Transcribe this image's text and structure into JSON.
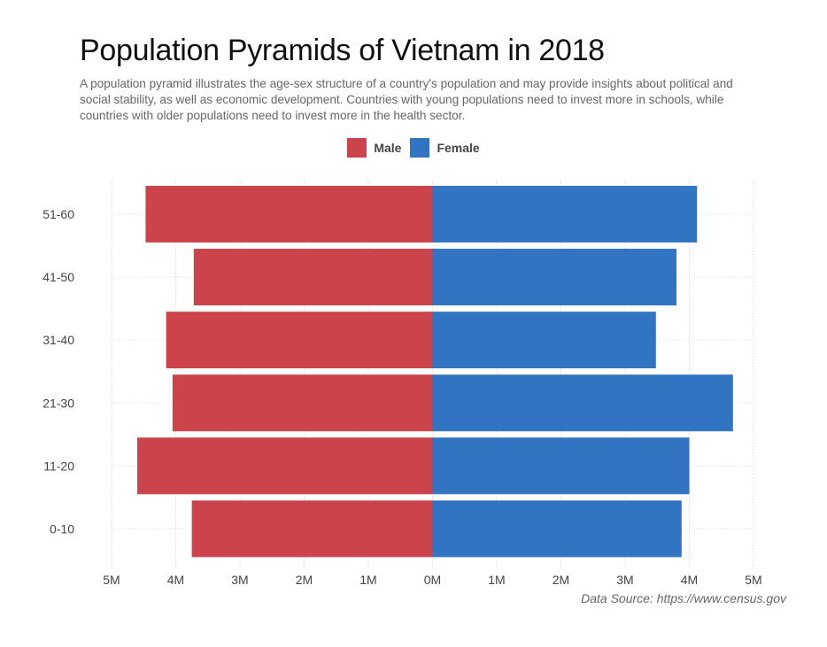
{
  "title": "Population Pyramids of Vietnam in 2018",
  "subtitle": "A population pyramid illustrates the age-sex structure of a country's population and may provide insights about political and social stability, as well as economic development. Countries with young populations need to invest more in schools, while countries with older populations need to invest more in the health sector.",
  "source": "Data Source: https://www.census.gov",
  "legend": [
    {
      "label": "Male",
      "color": "#cc444b"
    },
    {
      "label": "Female",
      "color": "#3174c2"
    }
  ],
  "chart_data": {
    "type": "bar",
    "orientation": "horizontal",
    "title": "Population Pyramids of Vietnam in 2018",
    "categories": [
      "0-10",
      "11-20",
      "21-30",
      "31-40",
      "41-50",
      "51-60"
    ],
    "series": [
      {
        "name": "Male",
        "color": "#cc444b",
        "values": [
          3.75,
          4.6,
          4.05,
          4.15,
          3.72,
          4.47
        ]
      },
      {
        "name": "Female",
        "color": "#3174c2",
        "values": [
          3.88,
          4.0,
          4.68,
          3.48,
          3.8,
          4.12
        ]
      }
    ],
    "xlim": [
      -5,
      5
    ],
    "xticks": [
      -5,
      -4,
      -3,
      -2,
      -1,
      0,
      1,
      2,
      3,
      4,
      5
    ],
    "xtick_labels": [
      "5M",
      "4M",
      "3M",
      "2M",
      "1M",
      "0M",
      "1M",
      "2M",
      "3M",
      "4M",
      "5M"
    ],
    "unit": "millions",
    "legend_position": "top-center",
    "grid": true
  }
}
